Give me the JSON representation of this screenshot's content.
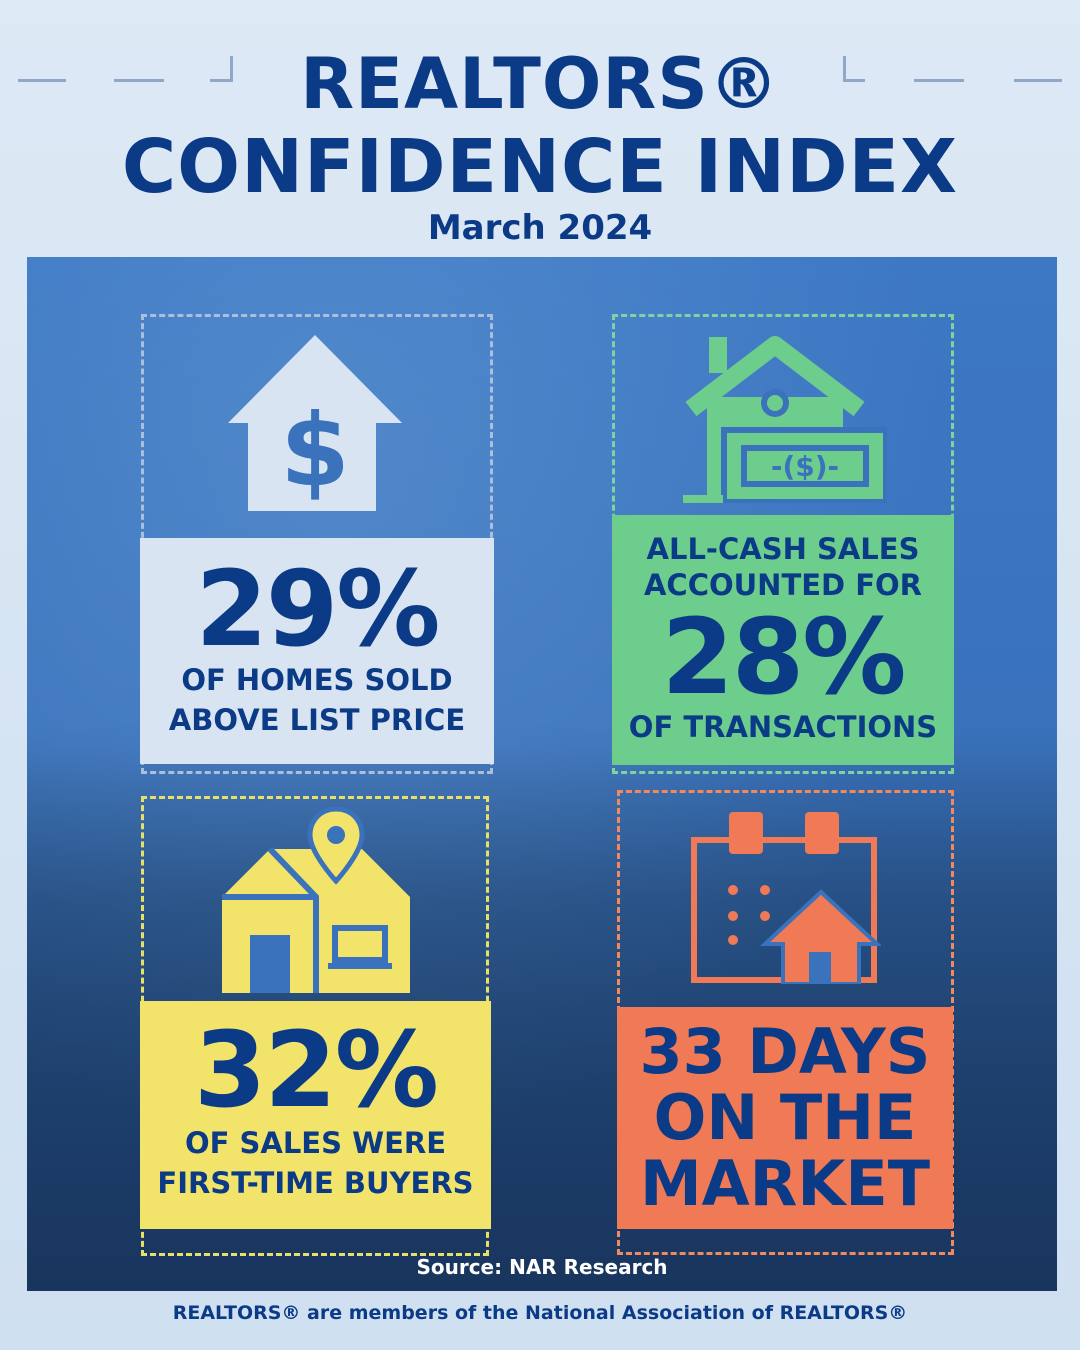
{
  "header": {
    "title_line1": "REALTORS®",
    "title_line2": "CONFIDENCE INDEX",
    "subtitle": "March 2024"
  },
  "stats": [
    {
      "icon": "house-dollar-icon",
      "color": "#d8e4f2",
      "value": "29%",
      "text_lines": [
        "OF HOMES SOLD",
        "ABOVE LIST PRICE"
      ]
    },
    {
      "icon": "house-cash-icon",
      "color": "#6dcd8d",
      "text_lines_top": [
        "ALL-CASH SALES",
        "ACCOUNTED FOR"
      ],
      "value": "28%",
      "text_lines": [
        "OF TRANSACTIONS"
      ]
    },
    {
      "icon": "house-location-pin-icon",
      "color": "#f2e46a",
      "value": "32%",
      "text_lines": [
        "OF SALES WERE",
        "FIRST-TIME BUYERS"
      ]
    },
    {
      "icon": "calendar-house-icon",
      "color": "#f07a56",
      "text_lines": [
        "33 DAYS",
        "ON THE",
        "MARKET"
      ]
    }
  ],
  "source": "Source: NAR Research",
  "footer": "REALTORS® are members of the National Association of REALTORS®",
  "colors": {
    "brand_navy": "#0b3a86",
    "background": "#dde9f5",
    "panel_blue": "#3a72bc"
  }
}
